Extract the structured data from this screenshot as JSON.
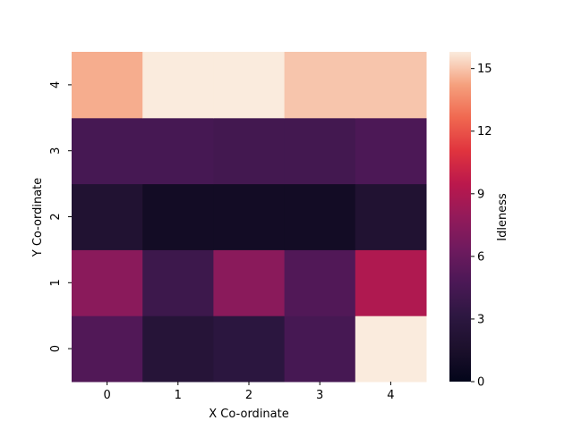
{
  "chart_data": {
    "type": "heatmap",
    "title": "",
    "xlabel": "X Co-ordinate",
    "ylabel": "Y Co-ordinate",
    "colorbar_label": "Idleness",
    "x_categories": [
      "0",
      "1",
      "2",
      "3",
      "4"
    ],
    "y_categories": [
      "0",
      "1",
      "2",
      "3",
      "4"
    ],
    "values_by_y": {
      "0": [
        5.0,
        2.5,
        3.0,
        4.5,
        16.0
      ],
      "1": [
        7.5,
        4.0,
        7.5,
        5.0,
        9.0
      ],
      "2": [
        2.0,
        1.0,
        1.0,
        1.0,
        2.0
      ],
      "3": [
        4.5,
        4.5,
        4.3,
        4.3,
        4.8
      ],
      "4": [
        14.5,
        16.0,
        16.0,
        15.0,
        15.0
      ]
    },
    "vmin": 0,
    "vmax": 15.8,
    "colorbar_ticks": [
      0,
      3,
      6,
      9,
      12,
      15
    ],
    "colormap": "rocket",
    "grid": false
  }
}
